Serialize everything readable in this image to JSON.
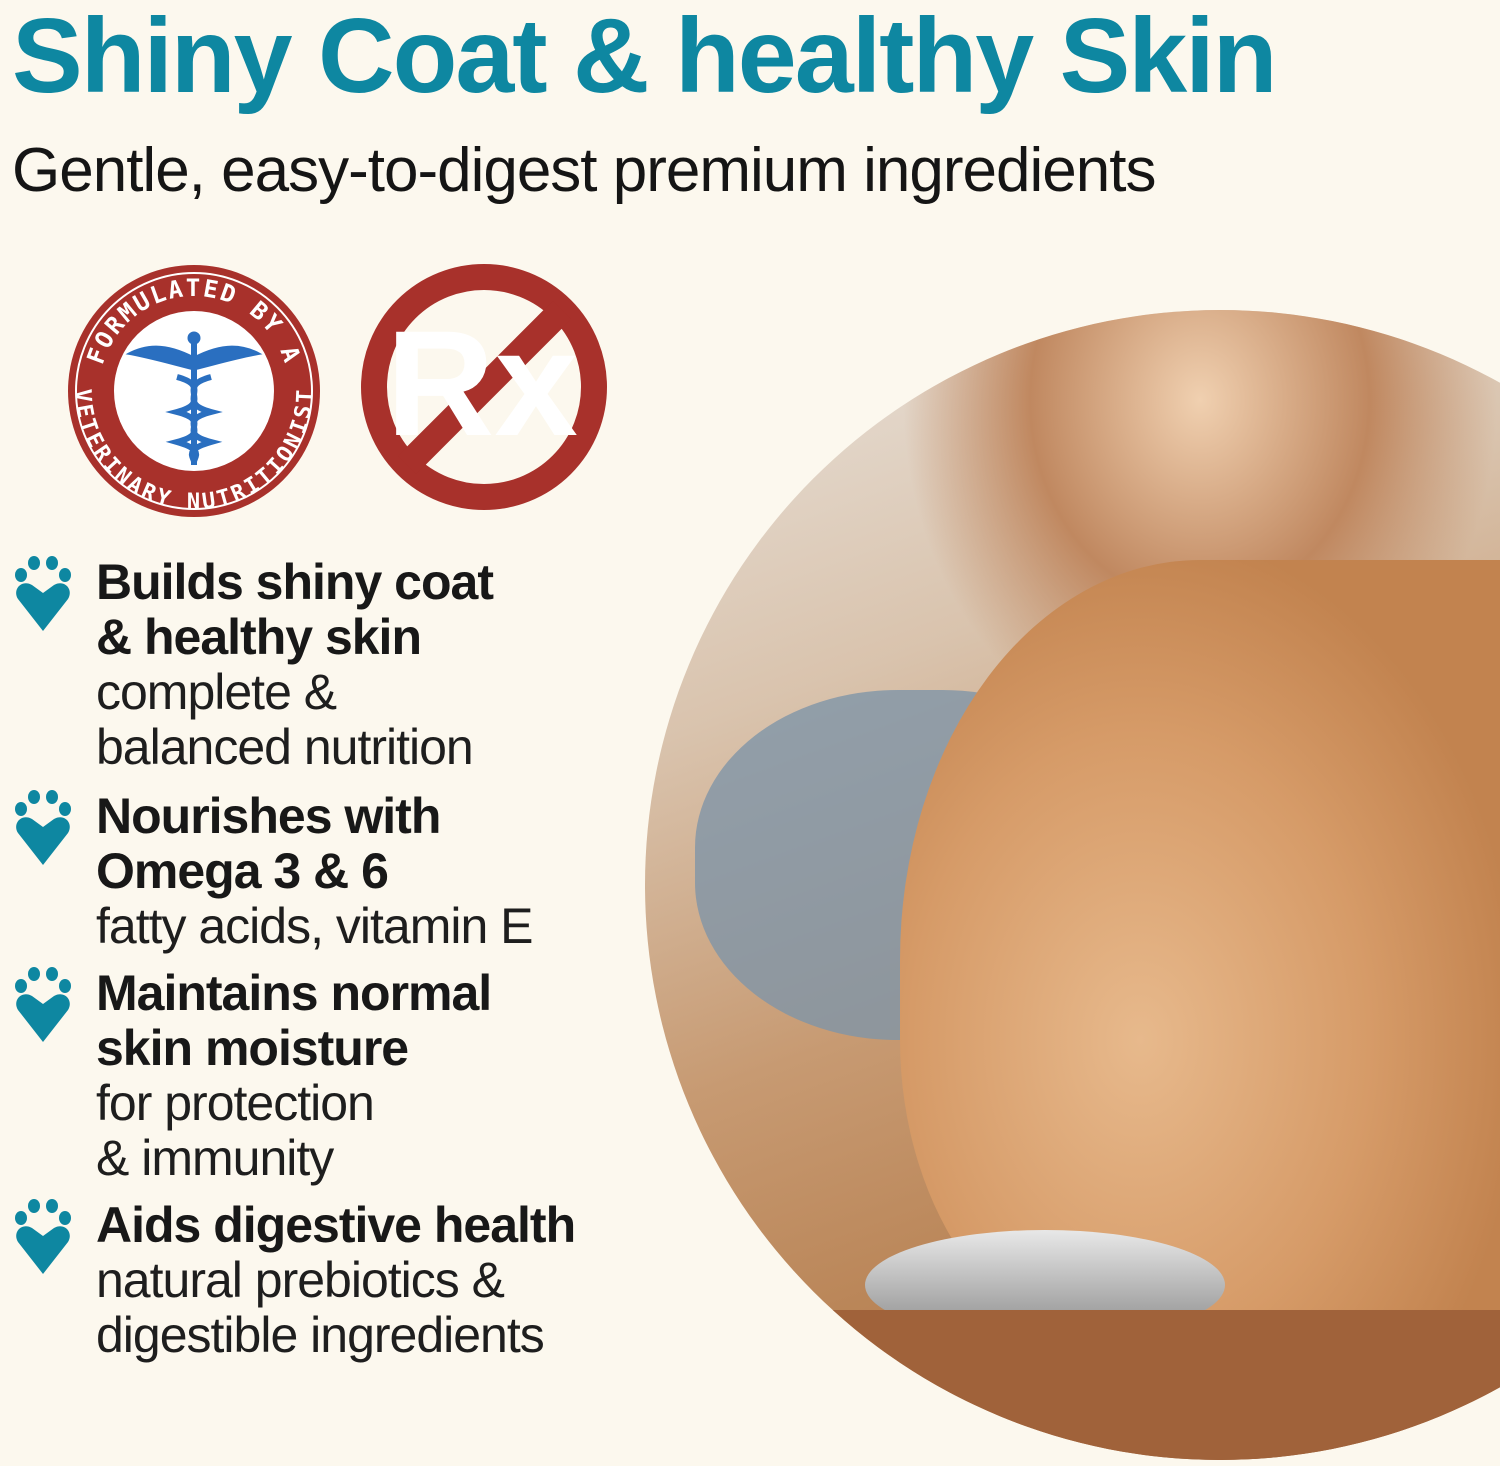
{
  "header": {
    "title": "Shiny Coat & healthy Skin",
    "subtitle": "Gentle, easy-to-digest premium ingredients"
  },
  "badges": {
    "vet_seal": {
      "text_top": "FORMULATED BY A",
      "text_bottom": "VETERINARY NUTRITIONIST",
      "icon": "caduceus-icon"
    },
    "no_rx": {
      "text": "Rx",
      "icon": "no-prescription-icon"
    }
  },
  "colors": {
    "accent": "#0e87a1",
    "badge_red": "#a8312b",
    "background": "#fcf8ee"
  },
  "photo": {
    "icon": "woman-feeding-golden-retriever-photo"
  },
  "bullets": [
    {
      "bold": [
        "Builds shiny coat",
        "& healthy skin"
      ],
      "light": [
        "complete &",
        "balanced nutrition"
      ],
      "icon": "paw-heart-icon"
    },
    {
      "bold": [
        "Nourishes with",
        "Omega 3 & 6"
      ],
      "light": [
        "fatty acids, vitamin E"
      ],
      "icon": "paw-heart-icon"
    },
    {
      "bold": [
        "Maintains normal",
        "skin moisture"
      ],
      "light": [
        "for protection",
        "& immunity"
      ],
      "icon": "paw-heart-icon"
    },
    {
      "bold": [
        "Aids digestive health"
      ],
      "light": [
        "natural prebiotics &",
        "digestible ingredients"
      ],
      "icon": "paw-heart-icon"
    }
  ]
}
